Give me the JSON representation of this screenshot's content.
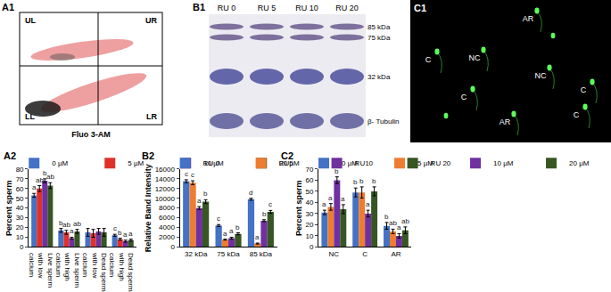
{
  "panels": {
    "A1": {
      "title": "A1",
      "quadrants": [
        "UL",
        "UR",
        "LL",
        "LR"
      ],
      "x_label": "Fluo 3-AM"
    },
    "B1": {
      "title": "B1",
      "lanes": [
        "RU 0",
        "RU 5",
        "RU 10",
        "RU 20"
      ],
      "bands": [
        "85 kDa",
        "75 kDa",
        "32 kDa",
        "β- Tubulin"
      ]
    },
    "C1": {
      "title": "C1",
      "cell_labels": [
        "AR",
        "C",
        "NC",
        "NC",
        "C",
        "C",
        "AR",
        "C"
      ]
    }
  },
  "chart_data": [
    {
      "type": "bar",
      "title": "A2",
      "y_label": "Percent sperm",
      "categories": [
        "Live sperm with low calcium",
        "Live sperm with high calcium",
        "Dead sperm with low calcium",
        "Dead sperm with high calcium"
      ],
      "ylim": [
        0,
        80
      ],
      "yticks": [
        0,
        10,
        20,
        30,
        40,
        50,
        60,
        70,
        80
      ],
      "grid": false,
      "legend": "top",
      "series": [
        {
          "name": "0 µM",
          "color": "#4472c4",
          "values": [
            53,
            17,
            15,
            12
          ],
          "errors": [
            2,
            2,
            4,
            1
          ],
          "annotations": [
            "a",
            "b",
            null,
            "c"
          ]
        },
        {
          "name": "5 µM",
          "color": "#e0302a",
          "values": [
            60,
            15,
            14,
            8
          ],
          "errors": [
            3,
            2,
            4,
            1
          ],
          "annotations": [
            "ab",
            "ab",
            null,
            "b"
          ]
        },
        {
          "name": "10 µM",
          "color": "#7030a0",
          "values": [
            68,
            9,
            16,
            6
          ],
          "errors": [
            2,
            1,
            3,
            1
          ],
          "annotations": [
            "b",
            "a",
            null,
            "a"
          ]
        },
        {
          "name": "20 µM",
          "color": "#375623",
          "values": [
            63,
            16,
            15,
            7
          ],
          "errors": [
            3,
            2,
            4,
            1
          ],
          "annotations": [
            "ab",
            "ab",
            null,
            "a"
          ]
        }
      ]
    },
    {
      "type": "bar",
      "title": "B2",
      "y_label": "Relative Band Intensity",
      "categories": [
        "32 kDa",
        "75 kDa",
        "85 kDa"
      ],
      "ylim": [
        0,
        16000
      ],
      "yticks": [
        0,
        2000,
        4000,
        6000,
        8000,
        10000,
        12000,
        14000,
        16000
      ],
      "grid": false,
      "legend": "top",
      "series": [
        {
          "name": "RU 0",
          "color": "#4472c4",
          "values": [
            13500,
            4400,
            9800
          ],
          "errors": [
            300,
            200,
            200
          ],
          "annotations": [
            "c",
            "c",
            "d"
          ]
        },
        {
          "name": "RU5",
          "color": "#ed7d31",
          "values": [
            13200,
            1500,
            700
          ],
          "errors": [
            400,
            100,
            100
          ],
          "annotations": [
            "c",
            "a",
            "a"
          ]
        },
        {
          "name": "RU10",
          "color": "#7030a0",
          "values": [
            8000,
            1800,
            5400
          ],
          "errors": [
            300,
            200,
            200
          ],
          "annotations": [
            "a",
            "a",
            "b"
          ]
        },
        {
          "name": "RU 20",
          "color": "#375623",
          "values": [
            9300,
            2700,
            7200
          ],
          "errors": [
            400,
            200,
            300
          ],
          "annotations": [
            "b",
            "b",
            "c"
          ]
        }
      ]
    },
    {
      "type": "bar",
      "title": "C2",
      "y_label": "Percent sperm",
      "categories": [
        "NC",
        "C",
        "AR"
      ],
      "ylim": [
        0,
        70
      ],
      "yticks": [
        0,
        10,
        20,
        30,
        40,
        50,
        60,
        70
      ],
      "grid": false,
      "legend": "top",
      "series": [
        {
          "name": "0 µM",
          "color": "#4472c4",
          "values": [
            31,
            49,
            19
          ],
          "errors": [
            2,
            4,
            3
          ],
          "annotations": [
            "a",
            "b",
            "b"
          ]
        },
        {
          "name": "5 µM",
          "color": "#ed7d31",
          "values": [
            36,
            49,
            14
          ],
          "errors": [
            3,
            5,
            2
          ],
          "annotations": [
            "a",
            "b",
            "ab"
          ]
        },
        {
          "name": "10 µM",
          "color": "#7030a0",
          "values": [
            60,
            30,
            10
          ],
          "errors": [
            3,
            3,
            2
          ],
          "annotations": [
            "b",
            "a",
            "a"
          ]
        },
        {
          "name": "20 µM",
          "color": "#375623",
          "values": [
            34,
            50,
            15
          ],
          "errors": [
            4,
            4,
            3
          ],
          "annotations": [
            "a",
            "b",
            "ab"
          ]
        }
      ]
    }
  ]
}
